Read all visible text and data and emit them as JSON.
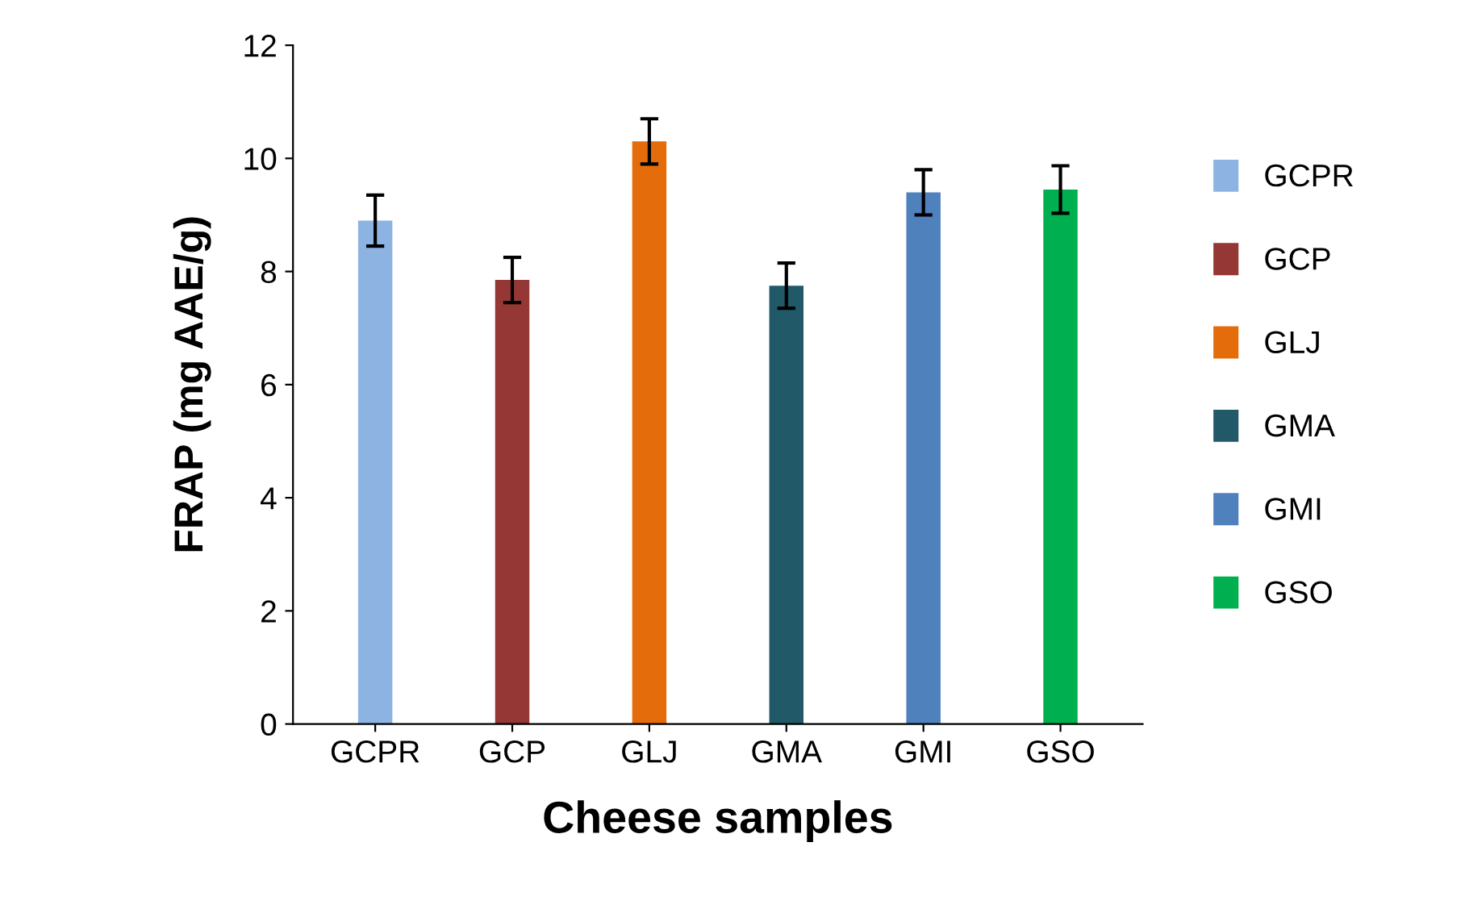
{
  "chart_data": {
    "type": "bar",
    "xlabel": "Cheese samples",
    "ylabel": "FRAP (mg AAE/g)",
    "categories": [
      "GCPR",
      "GCP",
      "GLJ",
      "GMA",
      "GMI",
      "GSO"
    ],
    "series": [
      {
        "name": "GCPR",
        "color": "#8db3e2",
        "values": [
          8.9,
          null,
          null,
          null,
          null,
          null
        ],
        "errors": [
          0.45,
          null,
          null,
          null,
          null,
          null
        ]
      },
      {
        "name": "GCP",
        "color": "#953735",
        "values": [
          null,
          7.85,
          null,
          null,
          null,
          null
        ],
        "errors": [
          null,
          0.4,
          null,
          null,
          null,
          null
        ]
      },
      {
        "name": "GLJ",
        "color": "#e46c0a",
        "values": [
          null,
          null,
          10.3,
          null,
          null,
          null
        ],
        "errors": [
          null,
          null,
          0.4,
          null,
          null,
          null
        ]
      },
      {
        "name": "GMA",
        "color": "#215968",
        "values": [
          null,
          null,
          null,
          7.75,
          null,
          null
        ],
        "errors": [
          null,
          null,
          null,
          0.4,
          null,
          null
        ]
      },
      {
        "name": "GMI",
        "color": "#4f81bd",
        "values": [
          null,
          null,
          null,
          null,
          9.4,
          null
        ],
        "errors": [
          null,
          null,
          null,
          null,
          0.4,
          null
        ]
      },
      {
        "name": "GSO",
        "color": "#00b050",
        "values": [
          null,
          null,
          null,
          null,
          null,
          9.45
        ],
        "errors": [
          null,
          null,
          null,
          null,
          null,
          0.42
        ]
      }
    ],
    "ylim": [
      0,
      12
    ],
    "yticks": [
      0,
      2,
      4,
      6,
      8,
      10,
      12
    ],
    "grid": false,
    "legend": "right"
  }
}
